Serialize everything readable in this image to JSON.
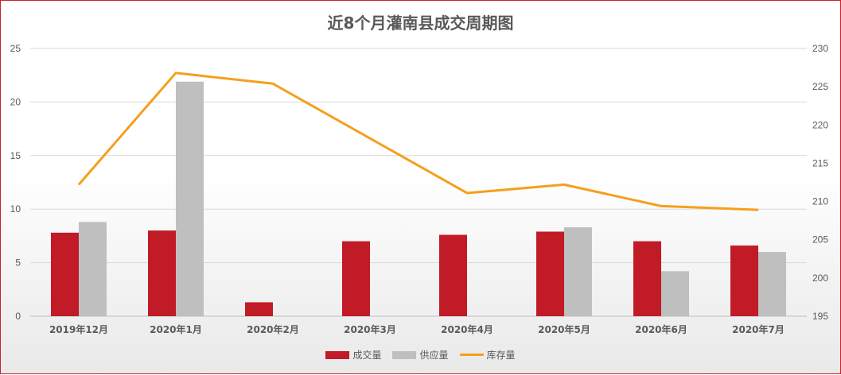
{
  "chart_data": {
    "type": "bar",
    "title": "近8个月灌南县成交周期图",
    "categories": [
      "2019年12月",
      "2020年1月",
      "2020年2月",
      "2020年3月",
      "2020年4月",
      "2020年5月",
      "2020年6月",
      "2020年7月"
    ],
    "series": [
      {
        "name": "成交量",
        "type": "bar",
        "axis": "left",
        "color": "#c11b27",
        "values": [
          7.8,
          8.0,
          1.3,
          7.0,
          7.6,
          7.9,
          7.0,
          6.6
        ]
      },
      {
        "name": "供应量",
        "type": "bar",
        "axis": "left",
        "color": "#bfbfbf",
        "values": [
          8.8,
          21.9,
          0,
          0,
          0,
          8.3,
          4.2,
          6.0
        ]
      },
      {
        "name": "库存量",
        "type": "line",
        "axis": "right",
        "color": "#f4a01c",
        "values": [
          212.2,
          226.8,
          225.4,
          null,
          211.1,
          212.2,
          209.4,
          208.9
        ]
      }
    ],
    "ylim_left": [
      0,
      25
    ],
    "yticks_left": [
      0,
      5,
      10,
      15,
      20,
      25
    ],
    "ylim_right": [
      195,
      230
    ],
    "yticks_right": [
      195,
      200,
      205,
      210,
      215,
      220,
      225,
      230
    ],
    "grid": true,
    "legend_position": "bottom"
  }
}
